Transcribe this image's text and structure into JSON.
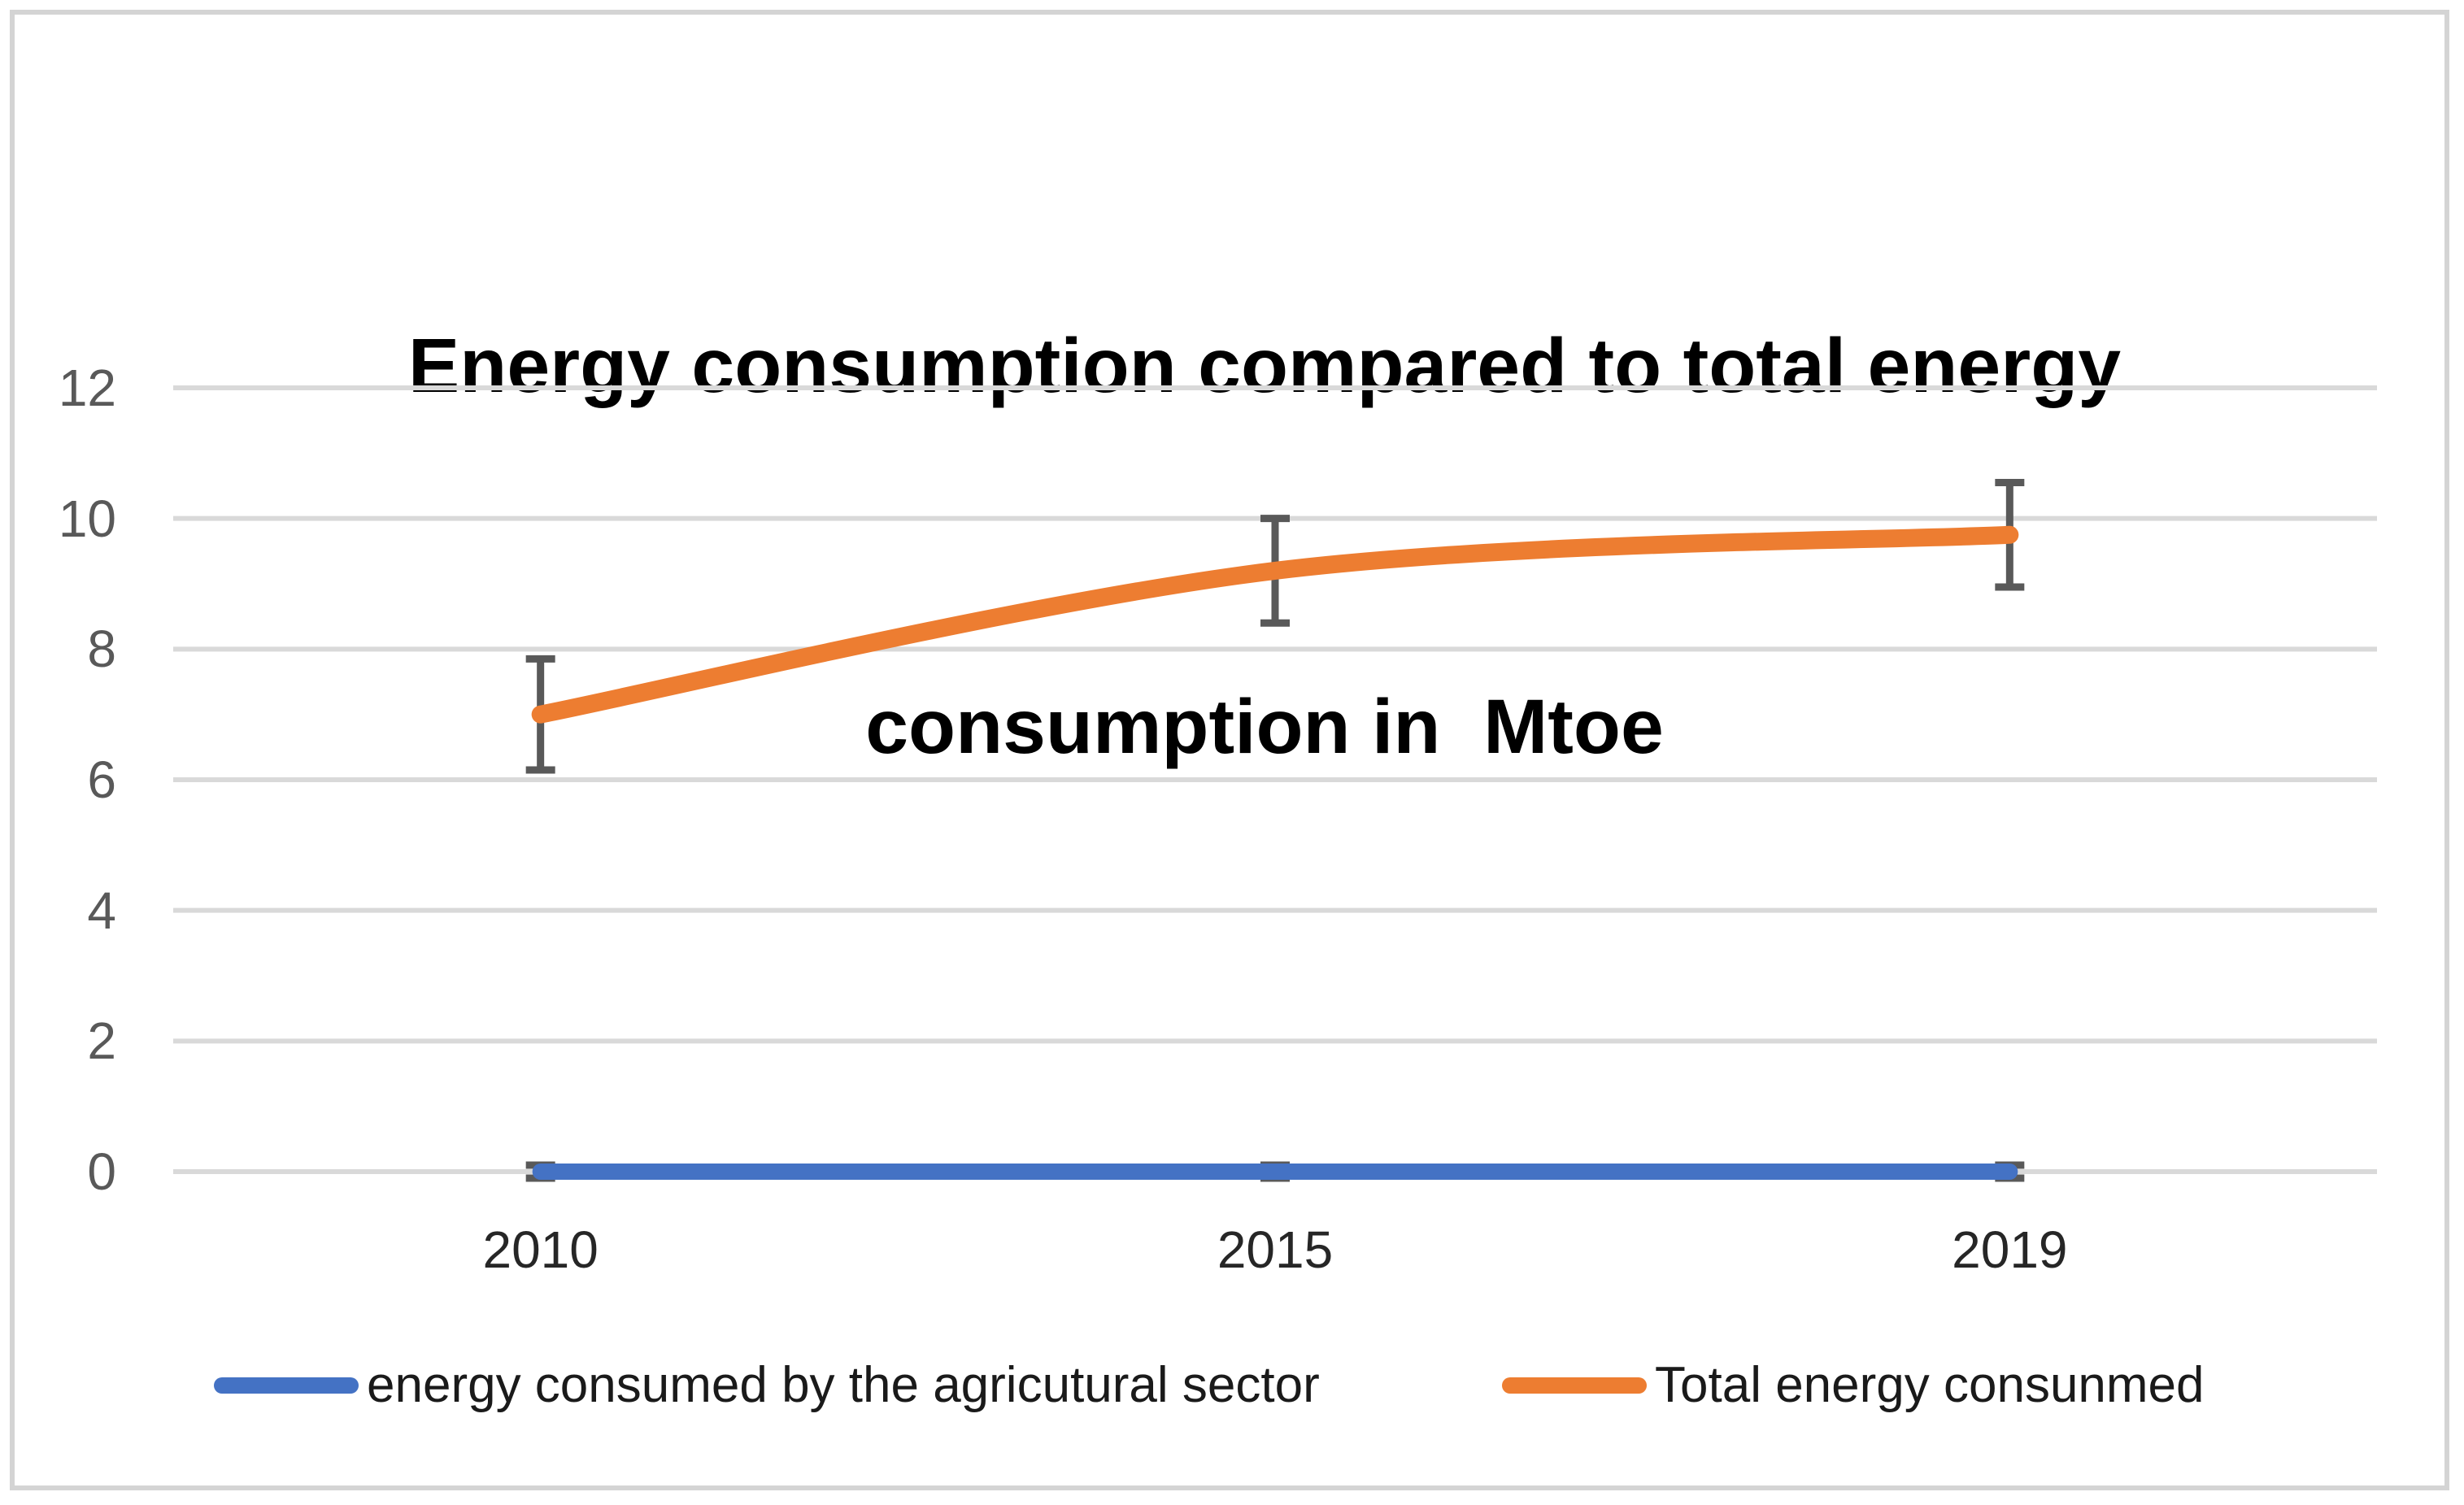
{
  "chart": {
    "title_line1": "Energy consumption compared to total energy",
    "title_line2": "consumption in  Mtoe"
  },
  "chart_data": {
    "type": "line",
    "title": "Energy consumption compared to total energy consumption in  Mtoe",
    "xlabel": "",
    "ylabel": "",
    "categories": [
      "2010",
      "2015",
      "2019"
    ],
    "yticks": [
      0,
      2,
      4,
      6,
      8,
      10,
      12
    ],
    "ylim": [
      0,
      12
    ],
    "grid": true,
    "grid_color": "#d9d9d9",
    "error_bar_color": "#595959",
    "ytick_color": "#595959",
    "xtick_color": "#262626",
    "legend_position": "bottom",
    "series": [
      {
        "name": "energy consumed by the agricutural sector",
        "color": "#4472c4",
        "values": [
          0,
          0,
          0
        ],
        "error_plus_minus": [
          0.1,
          0.1,
          0.1
        ],
        "smooth": false
      },
      {
        "name": "Total energy consunmed",
        "color": "#ed7d31",
        "values": [
          7.0,
          9.2,
          9.75
        ],
        "error_plus_minus": [
          0.85,
          0.8,
          0.8
        ],
        "smooth": true
      }
    ]
  }
}
